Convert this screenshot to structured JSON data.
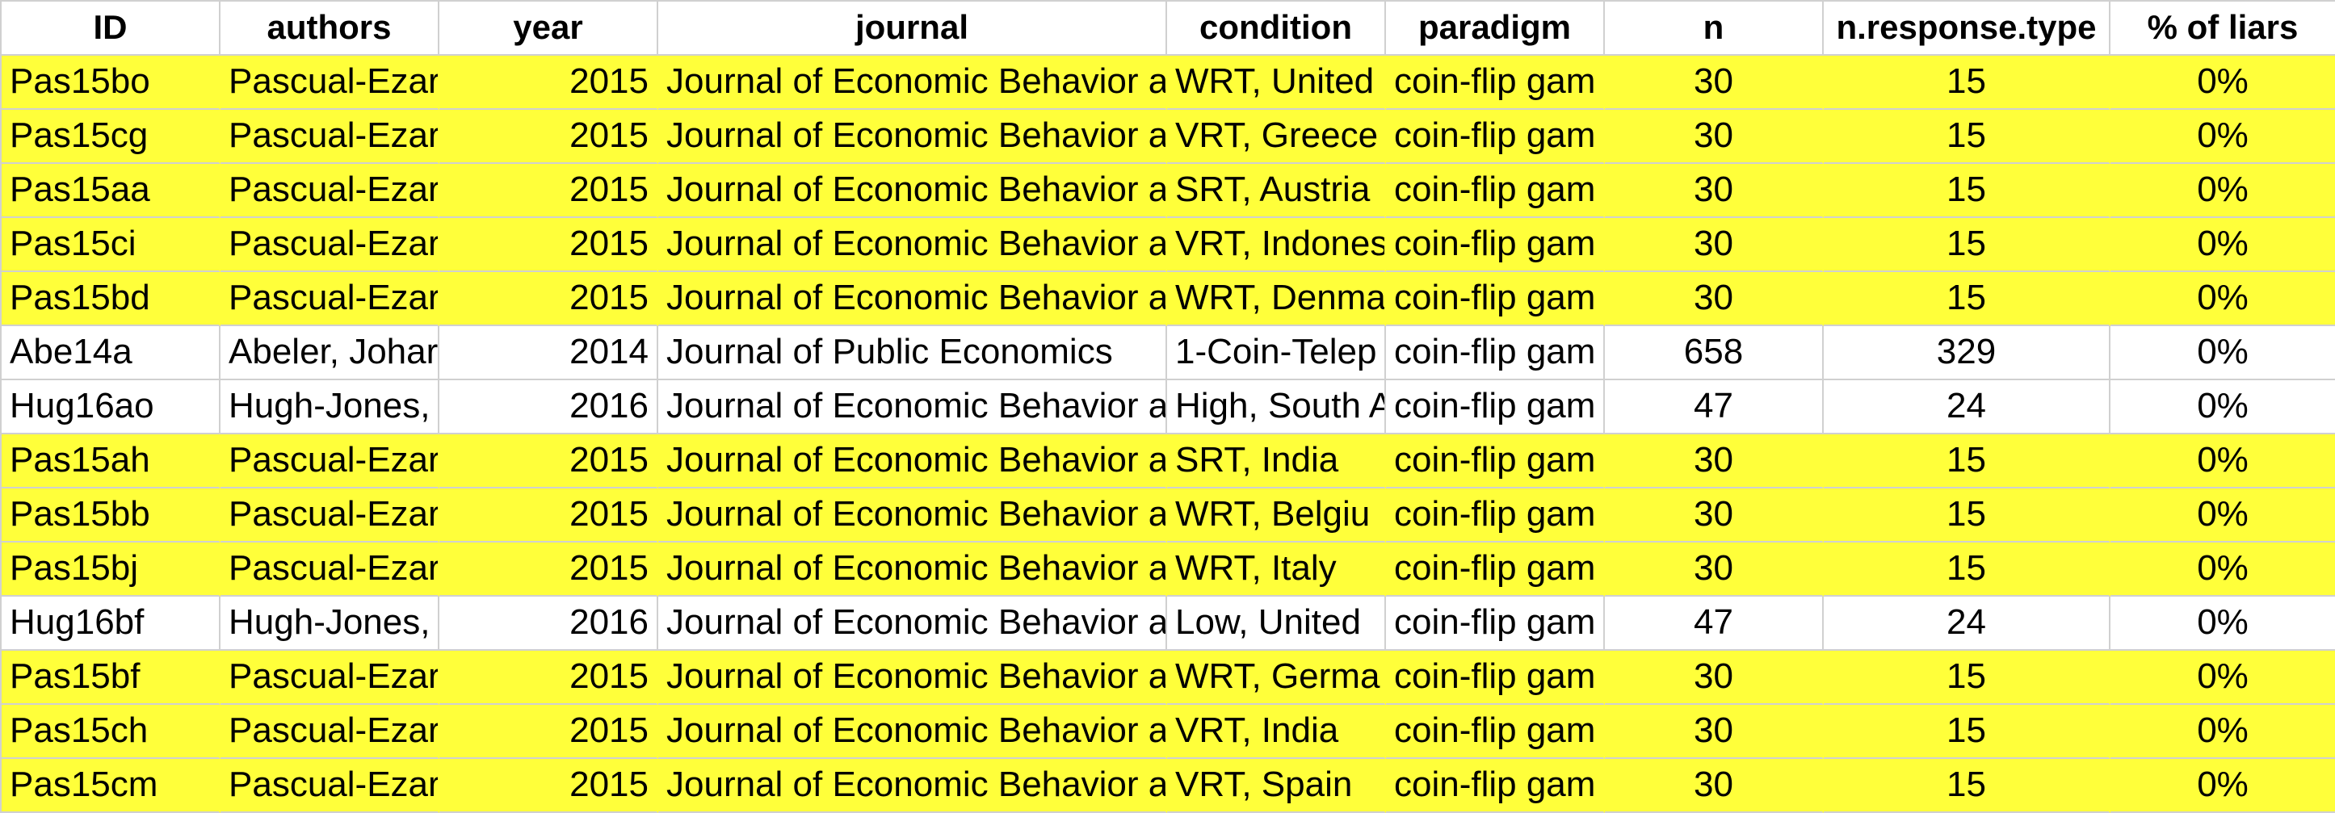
{
  "columns": [
    "ID",
    "authors",
    "year",
    "journal",
    "condition",
    "paradigm",
    "n",
    "n.response.type",
    "% of liars"
  ],
  "rows": [
    {
      "id": "Pas15bo",
      "authors": "Pascual-Ezar",
      "year": "2015",
      "journal": "Journal of Economic Behavior a",
      "condition": "WRT, United",
      "paradigm": "coin-flip gam",
      "n": "30",
      "n_response_type": "15",
      "liars": "0%",
      "highlight": true
    },
    {
      "id": "Pas15cg",
      "authors": "Pascual-Ezar",
      "year": "2015",
      "journal": "Journal of Economic Behavior a",
      "condition": "VRT, Greece",
      "paradigm": "coin-flip gam",
      "n": "30",
      "n_response_type": "15",
      "liars": "0%",
      "highlight": true
    },
    {
      "id": "Pas15aa",
      "authors": "Pascual-Ezar",
      "year": "2015",
      "journal": "Journal of Economic Behavior a",
      "condition": "SRT, Austria",
      "paradigm": "coin-flip gam",
      "n": "30",
      "n_response_type": "15",
      "liars": "0%",
      "highlight": true
    },
    {
      "id": "Pas15ci",
      "authors": "Pascual-Ezar",
      "year": "2015",
      "journal": "Journal of Economic Behavior a",
      "condition": "VRT, Indones",
      "paradigm": "coin-flip gam",
      "n": "30",
      "n_response_type": "15",
      "liars": "0%",
      "highlight": true
    },
    {
      "id": "Pas15bd",
      "authors": "Pascual-Ezar",
      "year": "2015",
      "journal": "Journal of Economic Behavior a",
      "condition": "WRT, Denma",
      "paradigm": "coin-flip gam",
      "n": "30",
      "n_response_type": "15",
      "liars": "0%",
      "highlight": true
    },
    {
      "id": "Abe14a",
      "authors": "Abeler, Johar",
      "year": "2014",
      "journal": "Journal of Public Economics",
      "condition": "1-Coin-Telep",
      "paradigm": "coin-flip gam",
      "n": "658",
      "n_response_type": "329",
      "liars": "0%",
      "highlight": false
    },
    {
      "id": "Hug16ao",
      "authors": "Hugh-Jones,",
      "year": "2016",
      "journal": "Journal of Economic Behavior a",
      "condition": "High, South A",
      "paradigm": "coin-flip gam",
      "n": "47",
      "n_response_type": "24",
      "liars": "0%",
      "highlight": false
    },
    {
      "id": "Pas15ah",
      "authors": "Pascual-Ezar",
      "year": "2015",
      "journal": "Journal of Economic Behavior a",
      "condition": "SRT, India",
      "paradigm": "coin-flip gam",
      "n": "30",
      "n_response_type": "15",
      "liars": "0%",
      "highlight": true
    },
    {
      "id": "Pas15bb",
      "authors": "Pascual-Ezar",
      "year": "2015",
      "journal": "Journal of Economic Behavior a",
      "condition": "WRT, Belgiu",
      "paradigm": "coin-flip gam",
      "n": "30",
      "n_response_type": "15",
      "liars": "0%",
      "highlight": true
    },
    {
      "id": "Pas15bj",
      "authors": "Pascual-Ezar",
      "year": "2015",
      "journal": "Journal of Economic Behavior a",
      "condition": "WRT, Italy",
      "paradigm": "coin-flip gam",
      "n": "30",
      "n_response_type": "15",
      "liars": "0%",
      "highlight": true
    },
    {
      "id": "Hug16bf",
      "authors": "Hugh-Jones,",
      "year": "2016",
      "journal": "Journal of Economic Behavior a",
      "condition": "Low, United",
      "paradigm": "coin-flip gam",
      "n": "47",
      "n_response_type": "24",
      "liars": "0%",
      "highlight": false
    },
    {
      "id": "Pas15bf",
      "authors": "Pascual-Ezar",
      "year": "2015",
      "journal": "Journal of Economic Behavior a",
      "condition": "WRT, Germa",
      "paradigm": "coin-flip gam",
      "n": "30",
      "n_response_type": "15",
      "liars": "0%",
      "highlight": true
    },
    {
      "id": "Pas15ch",
      "authors": "Pascual-Ezar",
      "year": "2015",
      "journal": "Journal of Economic Behavior a",
      "condition": "VRT, India",
      "paradigm": "coin-flip gam",
      "n": "30",
      "n_response_type": "15",
      "liars": "0%",
      "highlight": true
    },
    {
      "id": "Pas15cm",
      "authors": "Pascual-Ezar",
      "year": "2015",
      "journal": "Journal of Economic Behavior a",
      "condition": "VRT, Spain",
      "paradigm": "coin-flip gam",
      "n": "30",
      "n_response_type": "15",
      "liars": "0%",
      "highlight": true
    }
  ],
  "colors": {
    "highlight": "#ffff3a",
    "plain": "#ffffff",
    "gridline": "#d0d0d0"
  }
}
